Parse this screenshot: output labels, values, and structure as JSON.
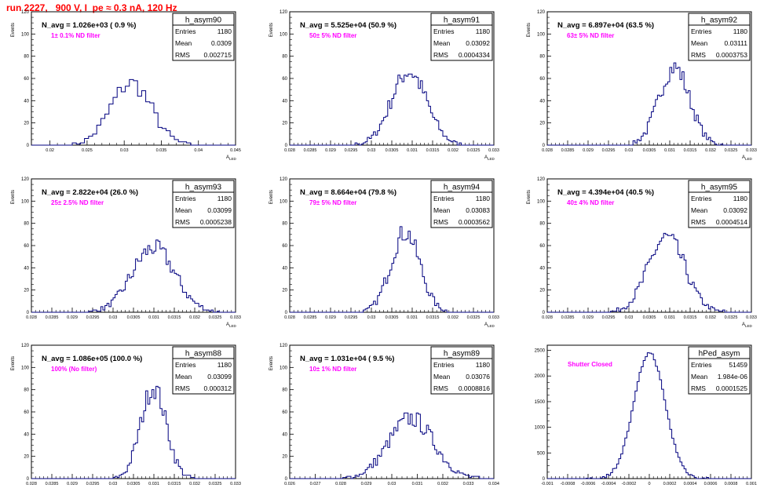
{
  "run_title": "run 2227,   900 V, I_pe ≈ 0.3 nA, 120 Hz",
  "colors": {
    "histogram": "#00007f",
    "annotation": "#ff00ff",
    "run_title": "#ff0000"
  },
  "chart_data": [
    {
      "type": "histogram",
      "name": "h_asym90",
      "ylabel": "Events",
      "xlabel": "A_LED",
      "xlim": [
        0.0175,
        0.045
      ],
      "ylim": [
        0,
        120
      ],
      "xticks": [
        0.02,
        0.025,
        0.03,
        0.035,
        0.04,
        0.045
      ],
      "xtick_labels": [
        "0.02",
        "0.025",
        "0.03",
        "0.035",
        "0.04",
        "0.045"
      ],
      "yticks": [
        0,
        20,
        40,
        60,
        80,
        100,
        120
      ],
      "stats": {
        "entries": "1180",
        "mean": "0.0309",
        "rms": "0.002715"
      },
      "navg": "N_avg = 1.026e+03 ( 0.9 %)",
      "filter": "1± 0.1% ND filter",
      "mean": 0.0309,
      "rms": 0.002715,
      "entries": 1180,
      "bins": 50,
      "peak": 56
    },
    {
      "type": "histogram",
      "name": "h_asym91",
      "ylabel": "Events",
      "xlabel": "A_LED",
      "xlim": [
        0.028,
        0.033
      ],
      "ylim": [
        0,
        120
      ],
      "xticks": [
        0.028,
        0.0285,
        0.029,
        0.0295,
        0.03,
        0.0305,
        0.031,
        0.0315,
        0.032,
        0.0325,
        0.033
      ],
      "xtick_labels": [
        "0.028",
        "0.0285",
        "0.029",
        "0.0295",
        "0.03",
        "0.0305",
        "0.031",
        "0.0315",
        "0.032",
        "0.0325",
        "0.033"
      ],
      "yticks": [
        0,
        20,
        40,
        60,
        80,
        100,
        120
      ],
      "stats": {
        "entries": "1180",
        "mean": "0.03092",
        "rms": "0.0004334"
      },
      "navg": "N_avg = 5.525e+04 (50.9 %)",
      "filter": "50± 5% ND filter",
      "mean": 0.03092,
      "rms": 0.0004334,
      "entries": 1180,
      "bins": 100,
      "peak": 66
    },
    {
      "type": "histogram",
      "name": "h_asym92",
      "ylabel": "Events",
      "xlabel": "A_LED",
      "xlim": [
        0.028,
        0.033
      ],
      "ylim": [
        0,
        120
      ],
      "xticks": [
        0.028,
        0.0285,
        0.029,
        0.0295,
        0.03,
        0.0305,
        0.031,
        0.0315,
        0.032,
        0.0325,
        0.033
      ],
      "xtick_labels": [
        "0.028",
        "0.0285",
        "0.029",
        "0.0295",
        "0.03",
        "0.0305",
        "0.031",
        "0.0315",
        "0.032",
        "0.0325",
        "0.033"
      ],
      "yticks": [
        0,
        20,
        40,
        60,
        80,
        100,
        120
      ],
      "stats": {
        "entries": "1180",
        "mean": "0.03111",
        "rms": "0.0003753"
      },
      "navg": "N_avg = 6.897e+04 (63.5 %)",
      "filter": "63± 5% ND filter",
      "mean": 0.03111,
      "rms": 0.0003753,
      "entries": 1180,
      "bins": 100,
      "peak": 70
    },
    {
      "type": "histogram",
      "name": "h_asym93",
      "ylabel": "Events",
      "xlabel": "A_LED",
      "xlim": [
        0.028,
        0.033
      ],
      "ylim": [
        0,
        120
      ],
      "xticks": [
        0.028,
        0.0285,
        0.029,
        0.0295,
        0.03,
        0.0305,
        0.031,
        0.0315,
        0.032,
        0.0325,
        0.033
      ],
      "xtick_labels": [
        "0.028",
        "0.0285",
        "0.029",
        "0.0295",
        "0.03",
        "0.0305",
        "0.031",
        "0.0315",
        "0.032",
        "0.0325",
        "0.033"
      ],
      "yticks": [
        0,
        20,
        40,
        60,
        80,
        100,
        120
      ],
      "stats": {
        "entries": "1180",
        "mean": "0.03099",
        "rms": "0.0005238"
      },
      "navg": "N_avg = 2.822e+04 (26.0 %)",
      "filter": "25± 2.5% ND filter",
      "mean": 0.03099,
      "rms": 0.0005238,
      "entries": 1180,
      "bins": 100,
      "peak": 58
    },
    {
      "type": "histogram",
      "name": "h_asym94",
      "ylabel": "Events",
      "xlabel": "A_LED",
      "xlim": [
        0.028,
        0.033
      ],
      "ylim": [
        0,
        120
      ],
      "xticks": [
        0.028,
        0.0285,
        0.029,
        0.0295,
        0.03,
        0.0305,
        0.031,
        0.0315,
        0.032,
        0.0325,
        0.033
      ],
      "xtick_labels": [
        "0.028",
        "0.0285",
        "0.029",
        "0.0295",
        "0.03",
        "0.0305",
        "0.031",
        "0.0315",
        "0.032",
        "0.0325",
        "0.033"
      ],
      "yticks": [
        0,
        20,
        40,
        60,
        80,
        100,
        120
      ],
      "stats": {
        "entries": "1180",
        "mean": "0.03083",
        "rms": "0.0003562"
      },
      "navg": "N_avg = 8.664e+04 (79.8 %)",
      "filter": "79± 5% ND filter",
      "mean": 0.03083,
      "rms": 0.0003562,
      "entries": 1180,
      "bins": 100,
      "peak": 72
    },
    {
      "type": "histogram",
      "name": "h_asym95",
      "ylabel": "Events",
      "xlabel": "A_LED",
      "xlim": [
        0.028,
        0.033
      ],
      "ylim": [
        0,
        120
      ],
      "xticks": [
        0.028,
        0.0285,
        0.029,
        0.0295,
        0.03,
        0.0305,
        0.031,
        0.0315,
        0.032,
        0.0325,
        0.033
      ],
      "xtick_labels": [
        "0.028",
        "0.0285",
        "0.029",
        "0.0295",
        "0.03",
        "0.0305",
        "0.031",
        "0.0315",
        "0.032",
        "0.0325",
        "0.033"
      ],
      "yticks": [
        0,
        20,
        40,
        60,
        80,
        100,
        120
      ],
      "stats": {
        "entries": "1180",
        "mean": "0.03092",
        "rms": "0.0004514"
      },
      "navg": "N_avg = 4.394e+04 (40.5 %)",
      "filter": "40± 4% ND filter",
      "mean": 0.03092,
      "rms": 0.0004514,
      "entries": 1180,
      "bins": 100,
      "peak": 67
    },
    {
      "type": "histogram",
      "name": "h_asym88",
      "ylabel": "Events",
      "xlabel": "A_LED",
      "xlim": [
        0.028,
        0.033
      ],
      "ylim": [
        0,
        120
      ],
      "xticks": [
        0.028,
        0.0285,
        0.029,
        0.0295,
        0.03,
        0.0305,
        0.031,
        0.0315,
        0.032,
        0.0325,
        0.033
      ],
      "xtick_labels": [
        "0.028",
        "0.0285",
        "0.029",
        "0.0295",
        "0.03",
        "0.0305",
        "0.031",
        "0.0315",
        "0.032",
        "0.0325",
        "0.033"
      ],
      "yticks": [
        0,
        20,
        40,
        60,
        80,
        100,
        120
      ],
      "stats": {
        "entries": "1180",
        "mean": "0.03099",
        "rms": "0.000312"
      },
      "navg": "N_avg = 1.086e+05 (100.0 %)",
      "filter": "100% (No filter)",
      "mean": 0.03099,
      "rms": 0.000312,
      "entries": 1180,
      "bins": 100,
      "peak": 82
    },
    {
      "type": "histogram",
      "name": "h_asym89",
      "ylabel": "Events",
      "xlabel": "A_LED",
      "xlim": [
        0.026,
        0.034
      ],
      "ylim": [
        0,
        120
      ],
      "xticks": [
        0.026,
        0.027,
        0.028,
        0.029,
        0.03,
        0.031,
        0.032,
        0.033,
        0.034
      ],
      "xtick_labels": [
        "0.026",
        "0.027",
        "0.028",
        "0.029",
        "0.03",
        "0.031",
        "0.032",
        "0.033",
        "0.034"
      ],
      "yticks": [
        0,
        20,
        40,
        60,
        80,
        100,
        120
      ],
      "stats": {
        "entries": "1180",
        "mean": "0.03076",
        "rms": "0.0008816"
      },
      "navg": "N_avg = 1.031e+04 ( 9.5 %)",
      "filter": "10± 1% ND filter",
      "mean": 0.03076,
      "rms": 0.0008816,
      "entries": 1180,
      "bins": 100,
      "peak": 54
    },
    {
      "type": "histogram",
      "name": "hPed_asym",
      "ylabel": "",
      "xlabel": "",
      "xlim": [
        -0.001,
        0.001
      ],
      "ylim": [
        0,
        2600
      ],
      "xticks": [
        -0.001,
        -0.0008,
        -0.0006,
        -0.0004,
        -0.0002,
        0,
        0.0002,
        0.0004,
        0.0006,
        0.0008,
        0.001
      ],
      "xtick_labels": [
        "-0.001",
        "-0.0008",
        "-0.0006",
        "-0.0004",
        "-0.0002",
        "0",
        "0.0002",
        "0.0004",
        "0.0006",
        "0.0008",
        "0.001"
      ],
      "yticks": [
        0,
        500,
        1000,
        1500,
        2000,
        2500
      ],
      "stats": {
        "entries": "51459",
        "mean": "1.984e-06",
        "rms": "0.0001525"
      },
      "navg": "",
      "filter": "Shutter Closed",
      "mean": 1.984e-06,
      "rms": 0.0001525,
      "entries": 51459,
      "bins": 100,
      "peak": 2450
    }
  ]
}
